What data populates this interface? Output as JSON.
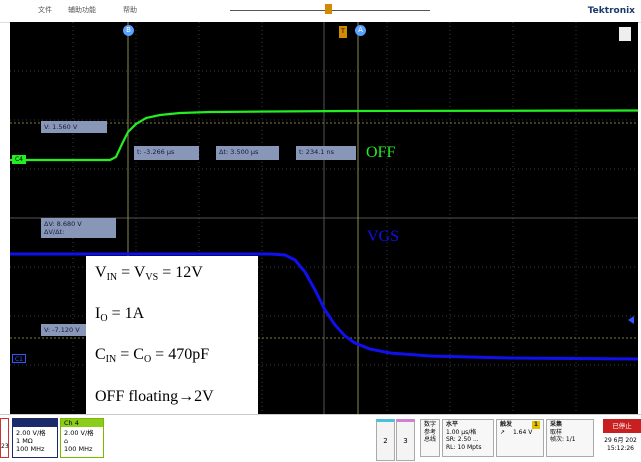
{
  "window": {
    "menu": [
      "文件",
      "辅助功能",
      "帮助"
    ],
    "brand": "Tektronix"
  },
  "markers": {
    "cursor_b": "B",
    "cursor_a": "A",
    "trigger": "T"
  },
  "channels": {
    "c4_label": "C4",
    "c1_label": "C1",
    "c4_color": "#22ee22",
    "c1_color": "#1010ee"
  },
  "cursor_readouts": {
    "v_c4": "V:   1.560 V",
    "t": "t:      -3.266 µs",
    "dt": "Δt:  3.500 µs",
    "t2": "t:       234.1 ns",
    "dv": "ΔV:      8.680 V",
    "dvdt": "ΔV/Δt:",
    "v_c1": "V:  -7.120 V"
  },
  "annotations": {
    "off_label": "OFF",
    "vgs_label": "VGS",
    "line1_a": "V",
    "line1_a_sub": "IN",
    "line1_b": " = V",
    "line1_b_sub": "VS",
    "line1_c": " = 12V",
    "line2_a": "I",
    "line2_a_sub": "O",
    "line2_c": " = 1A",
    "line3_a": "C",
    "line3_a_sub": "IN",
    "line3_b": " = C",
    "line3_b_sub": "O",
    "line3_c": " = 470pF",
    "line4": "OFF floating→2V"
  },
  "bottom": {
    "left_partial": "23",
    "ch1": {
      "scale": "2.00 V/格",
      "imp": "1 MΩ",
      "bw": "100 MHz"
    },
    "ch4": {
      "title": "Ch 4",
      "scale": "2.00 V/格",
      "bw": "100 MHz"
    },
    "btn2": "2",
    "btn3": "3",
    "math": [
      "数字",
      "参考",
      "总线"
    ],
    "horiz": {
      "title": "水平",
      "scale": "1.00 µs/格",
      "sr": "SR: 2.50 ...",
      "rl": "RL: 10 Mpts"
    },
    "trig": {
      "title": "触发",
      "ch": "1",
      "level": "1.64 V"
    },
    "acq": {
      "title": "采集",
      "mode": "取样",
      "frames": "帧次: 1/1"
    },
    "stop": "已停止",
    "date": "29 6月 202",
    "time": "15:12:26"
  }
}
